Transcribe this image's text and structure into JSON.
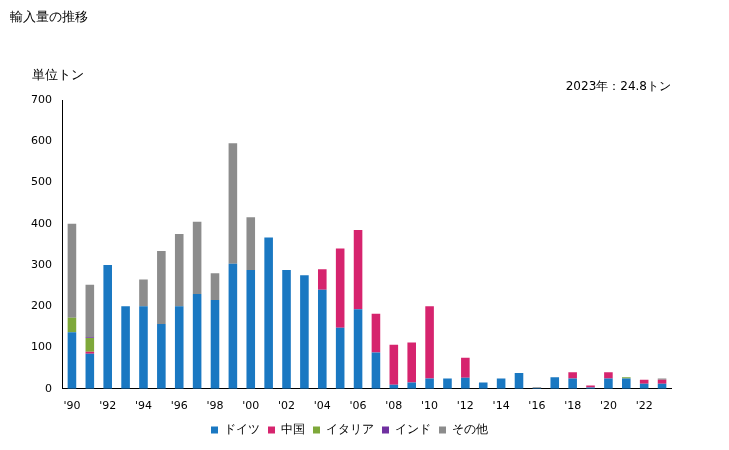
{
  "chart_data": {
    "type": "bar",
    "title": "輸入量の推移",
    "ylabel": "単位トン",
    "annotation": "2023年：24.8トン",
    "categories": [
      "'90",
      null,
      "'92",
      null,
      "'94",
      null,
      "'96",
      null,
      "'98",
      null,
      "'00",
      null,
      "'02",
      null,
      "'04",
      null,
      "'06",
      null,
      "'08",
      null,
      "'10",
      null,
      "'12",
      null,
      "'14",
      null,
      "'16",
      null,
      "'18",
      null,
      "'20",
      null,
      "'22",
      null
    ],
    "series": [
      {
        "name": "ドイツ",
        "color": "#1a78c2",
        "values": [
          137,
          85,
          300,
          200,
          200,
          157,
          200,
          230,
          215,
          303,
          288,
          367,
          288,
          275,
          240,
          148,
          193,
          88,
          10,
          15,
          25,
          25,
          27,
          15,
          25,
          38,
          2,
          28,
          25,
          3,
          25,
          25,
          12,
          12
        ]
      },
      {
        "name": "中国",
        "color": "#d6246e",
        "values": [
          0,
          5,
          0,
          0,
          0,
          0,
          0,
          0,
          0,
          0,
          0,
          0,
          0,
          0,
          50,
          192,
          192,
          94,
          97,
          97,
          175,
          0,
          48,
          0,
          0,
          0,
          0,
          0,
          15,
          5,
          15,
          0,
          10,
          10
        ]
      },
      {
        "name": "イタリア",
        "color": "#7ea83a",
        "values": [
          35,
          33,
          0,
          0,
          0,
          0,
          0,
          0,
          0,
          0,
          0,
          0,
          0,
          0,
          0,
          0,
          0,
          0,
          0,
          0,
          0,
          0,
          0,
          0,
          0,
          0,
          0,
          0,
          0,
          0,
          0,
          3,
          0,
          0
        ]
      },
      {
        "name": "インド",
        "color": "#7030a0",
        "values": [
          0,
          2,
          0,
          0,
          0,
          0,
          0,
          0,
          0,
          0,
          0,
          0,
          0,
          0,
          0,
          0,
          0,
          0,
          0,
          0,
          0,
          0,
          0,
          0,
          0,
          0,
          0,
          0,
          0,
          0,
          0,
          0,
          0,
          0
        ]
      },
      {
        "name": "その他",
        "color": "#8c8c8c",
        "values": [
          228,
          127,
          0,
          0,
          65,
          177,
          175,
          175,
          65,
          292,
          128,
          0,
          0,
          0,
          0,
          0,
          0,
          0,
          0,
          0,
          0,
          0,
          0,
          0,
          0,
          0,
          2,
          0,
          0,
          0,
          0,
          0,
          0,
          2.8
        ]
      }
    ],
    "stacked": true,
    "ylim": [
      0,
      700
    ],
    "yticks": [
      0,
      100,
      200,
      300,
      400,
      500,
      600,
      700
    ],
    "grid": false,
    "legend": "bottom"
  }
}
